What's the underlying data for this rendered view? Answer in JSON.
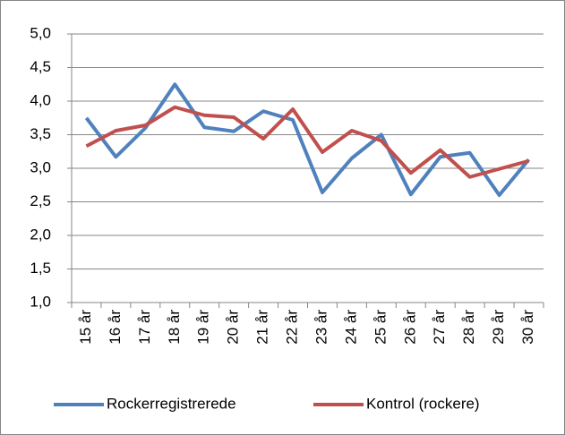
{
  "chart_data": {
    "type": "line",
    "categories": [
      "15 år",
      "16 år",
      "17 år",
      "18 år",
      "19 år",
      "20 år",
      "21 år",
      "22 år",
      "23 år",
      "24 år",
      "25 år",
      "26 år",
      "27 år",
      "28 år",
      "29 år",
      "30 år"
    ],
    "series": [
      {
        "name": "Rockerregistrerede",
        "color": "#4f81bd",
        "values": [
          3.75,
          3.17,
          3.6,
          4.25,
          3.61,
          3.55,
          3.85,
          3.72,
          2.64,
          3.15,
          3.5,
          2.61,
          3.17,
          3.23,
          2.6,
          3.13
        ]
      },
      {
        "name": "Kontrol (rockere)",
        "color": "#c0504d",
        "values": [
          3.33,
          3.56,
          3.64,
          3.91,
          3.79,
          3.76,
          3.44,
          3.88,
          3.24,
          3.56,
          3.41,
          2.93,
          3.27,
          2.87,
          2.99,
          3.11
        ]
      }
    ],
    "ylim": [
      1.0,
      5.0
    ],
    "yticks": [
      {
        "value": 1.0,
        "label": "1,0"
      },
      {
        "value": 1.5,
        "label": "1,5"
      },
      {
        "value": 2.0,
        "label": "2,0"
      },
      {
        "value": 2.5,
        "label": "2,5"
      },
      {
        "value": 3.0,
        "label": "3,0"
      },
      {
        "value": 3.5,
        "label": "3,5"
      },
      {
        "value": 4.0,
        "label": "4,0"
      },
      {
        "value": 4.5,
        "label": "4,5"
      },
      {
        "value": 5.0,
        "label": "5,0"
      }
    ],
    "grid": true,
    "legend": "bottom"
  }
}
